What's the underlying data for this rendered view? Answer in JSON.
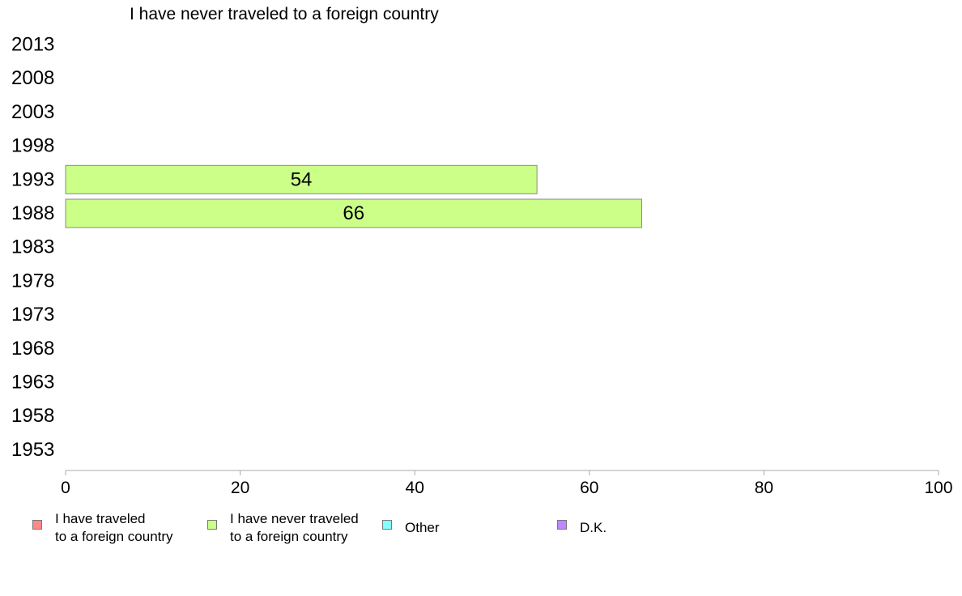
{
  "chart_data": {
    "type": "bar",
    "orientation": "horizontal",
    "title": "I have never traveled to a foreign country",
    "categories": [
      "2013",
      "2008",
      "2003",
      "1998",
      "1993",
      "1988",
      "1983",
      "1978",
      "1973",
      "1968",
      "1963",
      "1958",
      "1953"
    ],
    "series": [
      {
        "name": "I have never traveled to a foreign country",
        "color": "#ccff88",
        "values": [
          null,
          null,
          null,
          null,
          54,
          66,
          null,
          null,
          null,
          null,
          null,
          null,
          null
        ]
      }
    ],
    "data_labels": [
      null,
      null,
      null,
      null,
      "54",
      "66",
      null,
      null,
      null,
      null,
      null,
      null,
      null
    ],
    "xlim": [
      0,
      100
    ],
    "xticks": [
      "0",
      "20",
      "40",
      "60",
      "80",
      "100"
    ],
    "grid": false,
    "legend_position": "bottom"
  },
  "legend": {
    "items": [
      {
        "label_line1": "I have traveled",
        "label_line2": "to a foreign country",
        "color": "#ff8888"
      },
      {
        "label_line1": "I have never traveled",
        "label_line2": "to a foreign country",
        "color": "#ccff88"
      },
      {
        "label_line1": "Other",
        "label_line2": "",
        "color": "#88ffff"
      },
      {
        "label_line1": "D.K.",
        "label_line2": "",
        "color": "#bb88ff"
      }
    ]
  }
}
